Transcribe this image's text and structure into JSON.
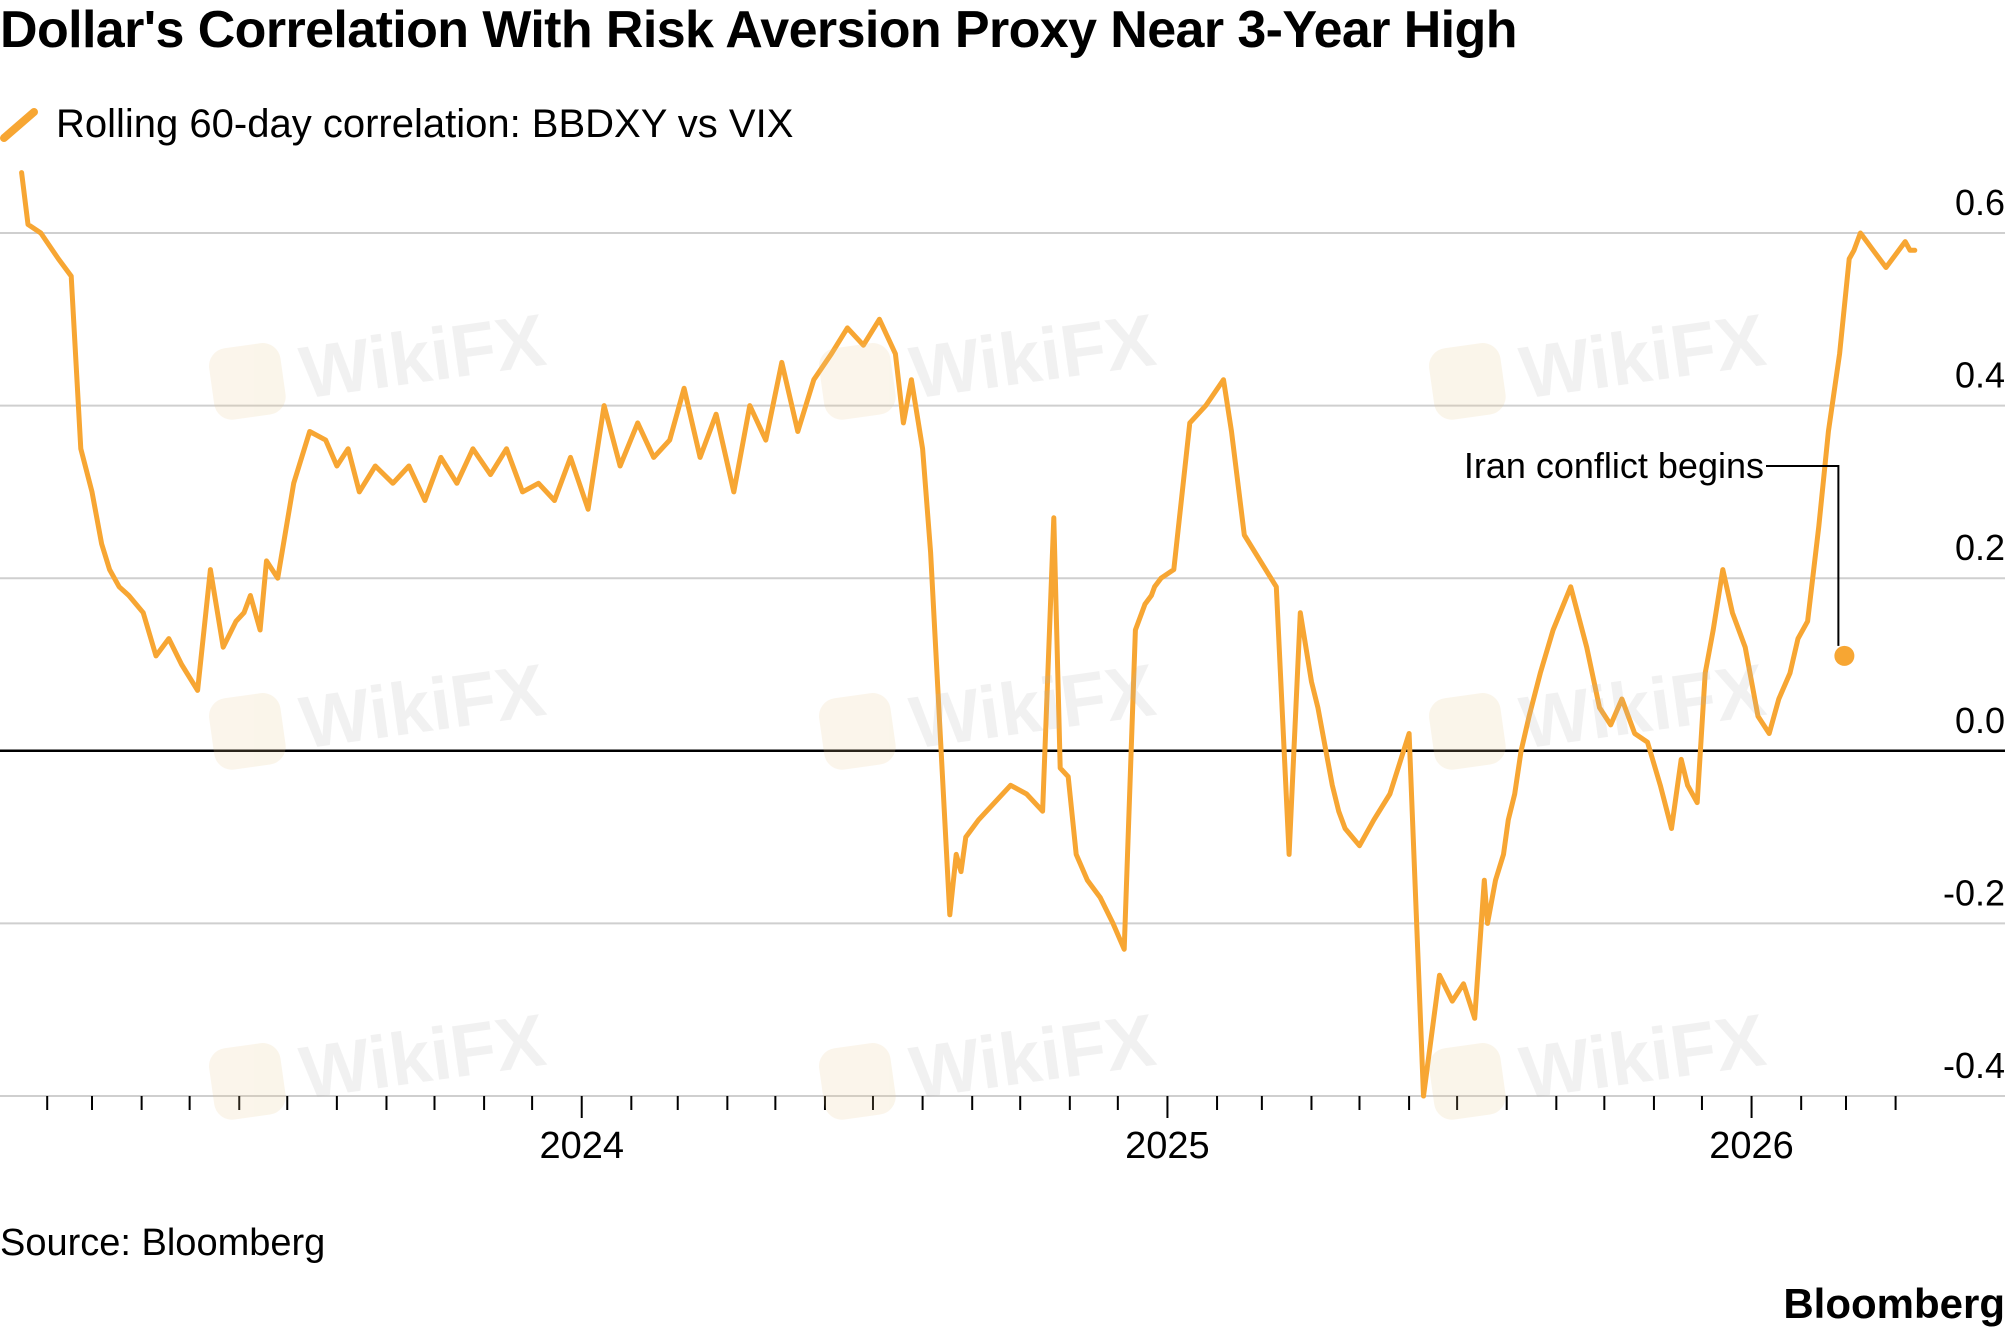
{
  "header": {
    "title": "Dollar's Correlation With Risk Aversion Proxy Near 3-Year High",
    "legend_label": "Rolling 60-day correlation: BBDXY vs VIX"
  },
  "colors": {
    "series": "#f7a633",
    "grid": "#cfcfcf",
    "zero_line": "#000000",
    "text": "#000000",
    "watermark": "#bdbdbd"
  },
  "watermark": {
    "text": "WikiFX"
  },
  "footer": {
    "source": "Source: Bloomberg",
    "brand": "Bloomberg"
  },
  "chart_data": {
    "type": "line",
    "title": "Dollar's Correlation With Risk Aversion Proxy Near 3-Year High",
    "xlabel": "",
    "ylabel": "",
    "ylim": [
      -0.4,
      0.6
    ],
    "xlim": [
      "2023-01-15",
      "2026-04-15"
    ],
    "y_ticks": [
      0.6,
      0.4,
      0.2,
      0.0,
      -0.2,
      -0.4
    ],
    "y_tick_labels": [
      "0.6",
      "0.4",
      "0.2",
      "0.0",
      "-0.2",
      "-0.4"
    ],
    "x_ticks": [
      "2024-01-01",
      "2025-01-01",
      "2026-01-01"
    ],
    "x_tick_labels": [
      "2024",
      "2025",
      "2026"
    ],
    "grid": true,
    "series": [
      {
        "name": "Rolling 60-day correlation: BBDXY vs VIX",
        "x": [
          "2023-01-16",
          "2023-01-20",
          "2023-01-28",
          "2023-02-08",
          "2023-02-16",
          "2023-02-22",
          "2023-03-01",
          "2023-03-07",
          "2023-03-12",
          "2023-03-18",
          "2023-03-24",
          "2023-04-02",
          "2023-04-10",
          "2023-04-18",
          "2023-04-26",
          "2023-05-06",
          "2023-05-14",
          "2023-05-22",
          "2023-05-30",
          "2023-06-04",
          "2023-06-08",
          "2023-06-14",
          "2023-06-18",
          "2023-06-25",
          "2023-07-05",
          "2023-07-15",
          "2023-07-25",
          "2023-08-01",
          "2023-08-08",
          "2023-08-15",
          "2023-08-25",
          "2023-09-05",
          "2023-09-15",
          "2023-09-25",
          "2023-10-05",
          "2023-10-15",
          "2023-10-25",
          "2023-11-05",
          "2023-11-15",
          "2023-11-25",
          "2023-12-05",
          "2023-12-15",
          "2023-12-25",
          "2024-01-05",
          "2024-01-15",
          "2024-01-25",
          "2024-02-05",
          "2024-02-15",
          "2024-02-25",
          "2024-03-05",
          "2024-03-15",
          "2024-03-25",
          "2024-04-05",
          "2024-04-15",
          "2024-04-25",
          "2024-05-05",
          "2024-05-15",
          "2024-05-25",
          "2024-06-05",
          "2024-06-15",
          "2024-06-25",
          "2024-07-05",
          "2024-07-15",
          "2024-07-20",
          "2024-07-25",
          "2024-08-01",
          "2024-08-06",
          "2024-08-12",
          "2024-08-18",
          "2024-08-22",
          "2024-08-25",
          "2024-08-28",
          "2024-09-05",
          "2024-09-15",
          "2024-09-25",
          "2024-10-05",
          "2024-10-15",
          "2024-10-22",
          "2024-10-26",
          "2024-10-31",
          "2024-11-05",
          "2024-11-12",
          "2024-11-20",
          "2024-11-28",
          "2024-12-05",
          "2024-12-12",
          "2024-12-18",
          "2024-12-22",
          "2024-12-24",
          "2024-12-28",
          "2025-01-05",
          "2025-01-15",
          "2025-01-25",
          "2025-02-05",
          "2025-02-10",
          "2025-02-18",
          "2025-02-28",
          "2025-03-10",
          "2025-03-18",
          "2025-03-25",
          "2025-04-01",
          "2025-04-05",
          "2025-04-10",
          "2025-04-14",
          "2025-04-18",
          "2025-04-22",
          "2025-05-01",
          "2025-05-10",
          "2025-05-20",
          "2025-06-01",
          "2025-06-10",
          "2025-06-20",
          "2025-06-28",
          "2025-07-05",
          "2025-07-12",
          "2025-07-18",
          "2025-07-20",
          "2025-07-25",
          "2025-07-30",
          "2025-08-02",
          "2025-08-06",
          "2025-08-10",
          "2025-08-15",
          "2025-08-22",
          "2025-08-30",
          "2025-09-10",
          "2025-09-20",
          "2025-09-28",
          "2025-10-05",
          "2025-10-12",
          "2025-10-20",
          "2025-10-28",
          "2025-11-05",
          "2025-11-12",
          "2025-11-18",
          "2025-11-22",
          "2025-11-28",
          "2025-12-03",
          "2025-12-08",
          "2025-12-14",
          "2025-12-20",
          "2025-12-28",
          "2026-01-05",
          "2026-01-12",
          "2026-01-18",
          "2026-01-25",
          "2026-01-30",
          "2026-02-05",
          "2026-02-12",
          "2026-02-18",
          "2026-02-25",
          "2026-03-03",
          "2026-03-06",
          "2026-03-10",
          "2026-03-14",
          "2026-03-18",
          "2026-03-22",
          "2026-03-26",
          "2026-03-30",
          "2026-04-03",
          "2026-04-07",
          "2026-04-10",
          "2026-04-13"
        ],
        "y": [
          0.67,
          0.61,
          0.6,
          0.57,
          0.55,
          0.35,
          0.3,
          0.24,
          0.21,
          0.19,
          0.18,
          0.16,
          0.11,
          0.13,
          0.1,
          0.07,
          0.21,
          0.12,
          0.15,
          0.16,
          0.18,
          0.14,
          0.22,
          0.2,
          0.31,
          0.37,
          0.36,
          0.33,
          0.35,
          0.3,
          0.33,
          0.31,
          0.33,
          0.29,
          0.34,
          0.31,
          0.35,
          0.32,
          0.35,
          0.3,
          0.31,
          0.29,
          0.34,
          0.28,
          0.4,
          0.33,
          0.38,
          0.34,
          0.36,
          0.42,
          0.34,
          0.39,
          0.3,
          0.4,
          0.36,
          0.45,
          0.37,
          0.43,
          0.46,
          0.49,
          0.47,
          0.5,
          0.46,
          0.38,
          0.43,
          0.35,
          0.23,
          0.02,
          -0.19,
          -0.12,
          -0.14,
          -0.1,
          -0.08,
          -0.06,
          -0.04,
          -0.05,
          -0.07,
          0.27,
          -0.02,
          -0.03,
          -0.12,
          -0.15,
          -0.17,
          -0.2,
          -0.23,
          0.14,
          0.17,
          0.18,
          0.19,
          0.2,
          0.21,
          0.38,
          0.4,
          0.43,
          0.37,
          0.25,
          0.22,
          0.19,
          -0.12,
          0.16,
          0.08,
          0.05,
          0.0,
          -0.04,
          -0.07,
          -0.09,
          -0.11,
          -0.08,
          -0.05,
          0.02,
          -0.4,
          -0.26,
          -0.29,
          -0.27,
          -0.31,
          -0.15,
          -0.2,
          -0.15,
          -0.12,
          -0.08,
          -0.05,
          0.0,
          0.04,
          0.09,
          0.14,
          0.19,
          0.12,
          0.05,
          0.03,
          0.06,
          0.02,
          0.01,
          -0.04,
          -0.09,
          -0.01,
          -0.04,
          -0.06,
          0.09,
          0.14,
          0.21,
          0.16,
          0.12,
          0.04,
          0.02,
          0.06,
          0.09,
          0.13,
          0.15,
          0.26,
          0.37,
          0.46,
          0.57,
          0.58,
          0.6,
          0.59,
          0.58,
          0.57,
          0.56,
          0.57,
          0.58,
          0.59,
          0.58,
          0.58
        ]
      }
    ],
    "annotations": [
      {
        "text": "Iran conflict begins",
        "x": "2026-02-28",
        "y": 0.11
      }
    ]
  }
}
